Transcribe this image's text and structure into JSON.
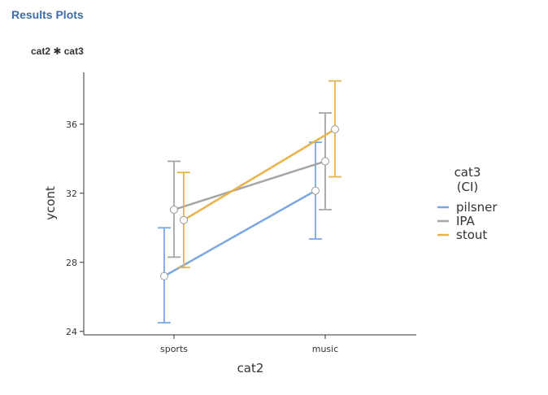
{
  "header": {
    "title": "Results Plots",
    "subtitle": "cat2 ✱ cat3"
  },
  "chart_data": {
    "type": "line",
    "xlabel": "cat2",
    "ylabel": "ycont",
    "categories": [
      "sports",
      "music"
    ],
    "ylim": [
      23.8,
      39.0
    ],
    "yticks": [
      24,
      28,
      32,
      36
    ],
    "ytick_labels": [
      "24",
      "28",
      "32",
      "36"
    ],
    "legend": {
      "title_line1": "cat3",
      "title_line2": "(CI)",
      "placement": "right"
    },
    "error_bars": "CI",
    "grid": false,
    "series": [
      {
        "name": "pilsner",
        "color": "#7ba7e0",
        "values": [
          27.2,
          32.15
        ],
        "lower": [
          24.5,
          29.35
        ],
        "upper": [
          30.0,
          34.95
        ]
      },
      {
        "name": "IPA",
        "color": "#a6a6a6",
        "values": [
          31.05,
          33.85
        ],
        "lower": [
          28.3,
          31.05
        ],
        "upper": [
          33.85,
          36.65
        ]
      },
      {
        "name": "stout",
        "color": "#e8b44a",
        "values": [
          30.45,
          35.7
        ],
        "lower": [
          27.7,
          32.95
        ],
        "upper": [
          33.2,
          38.5
        ]
      }
    ]
  }
}
